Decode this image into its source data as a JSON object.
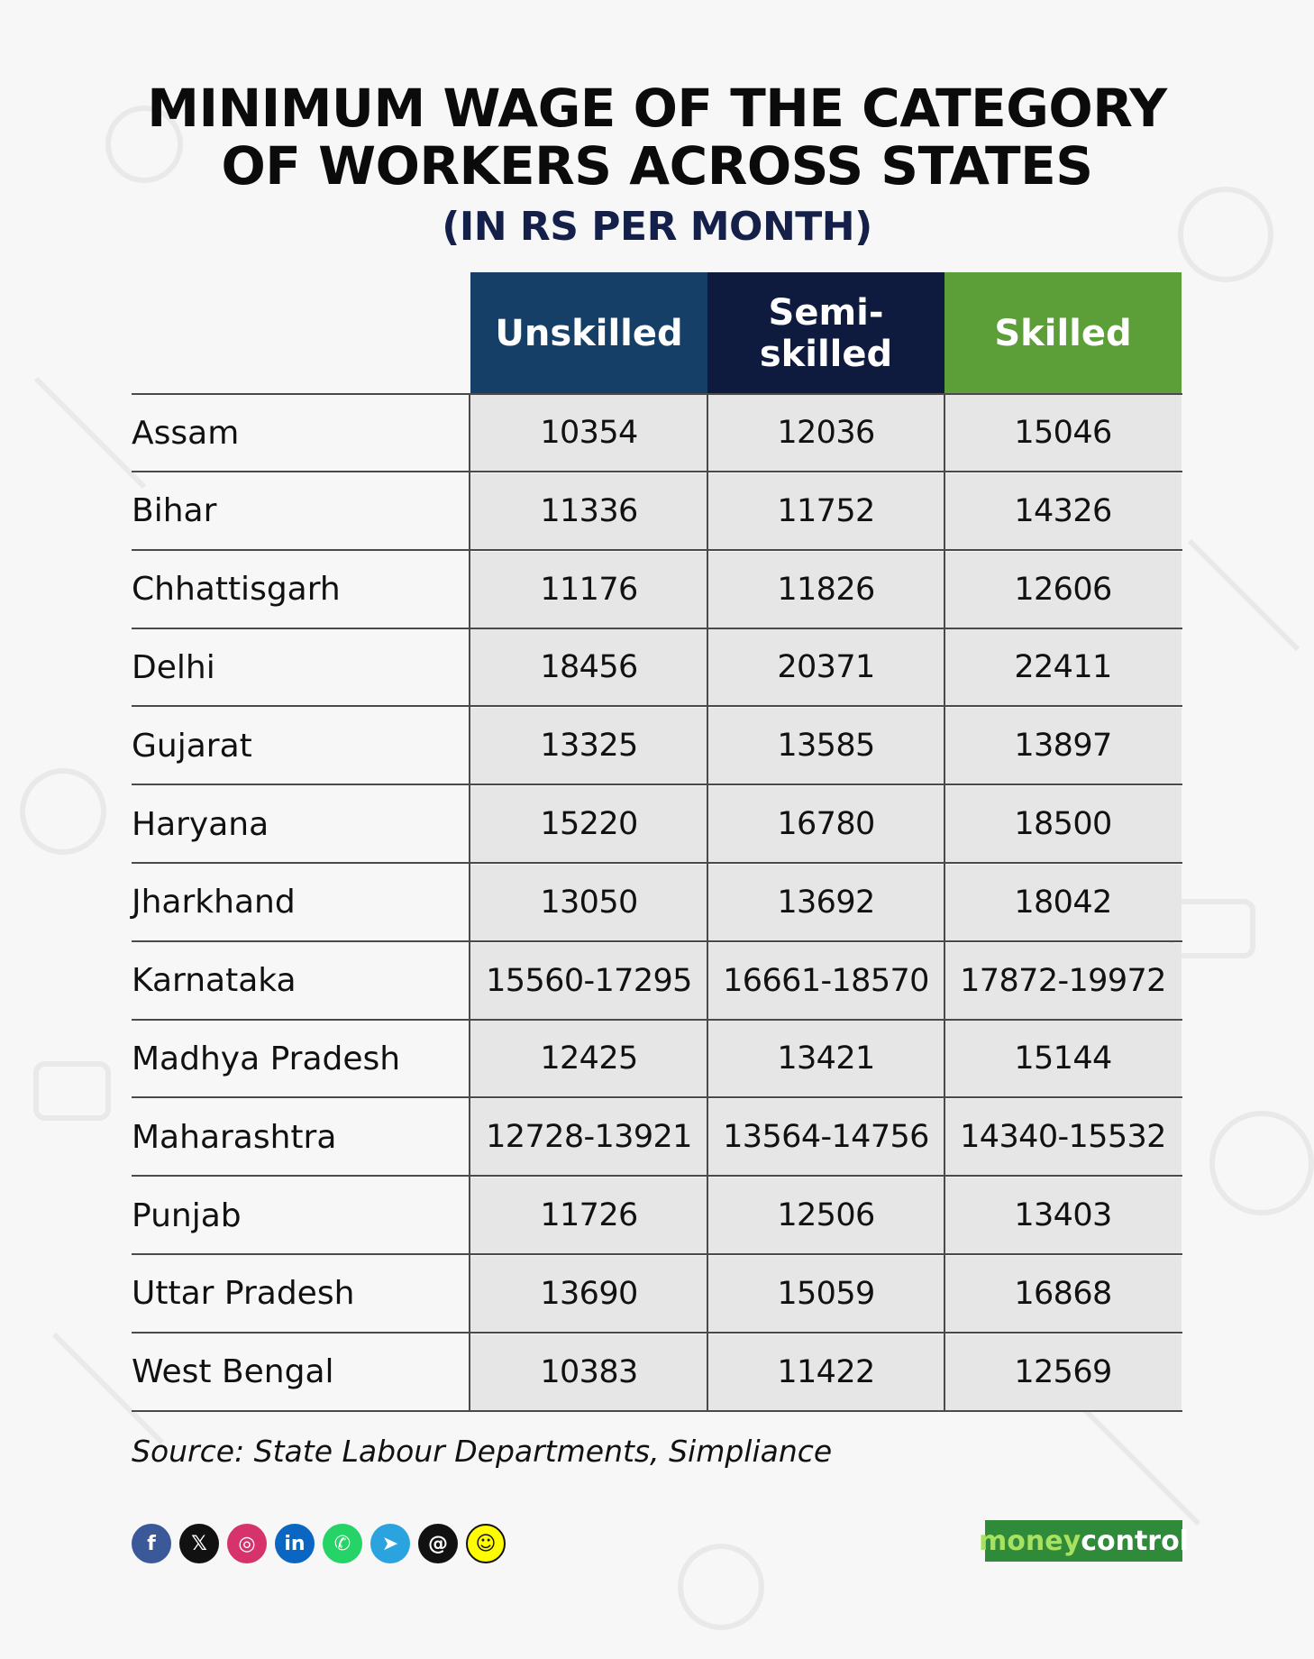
{
  "header": {
    "title_line1": "MINIMUM WAGE OF THE CATEGORY",
    "title_line2": "OF WORKERS ACROSS STATES",
    "subtitle": "(IN RS PER MONTH)"
  },
  "chart_data": {
    "type": "table",
    "title": "MINIMUM WAGE OF THE CATEGORY OF WORKERS ACROSS STATES",
    "subtitle": "(IN RS PER MONTH)",
    "columns": [
      "Unskilled",
      "Semi-skilled",
      "Skilled"
    ],
    "column_colors": [
      "#163f67",
      "#0e1b3e",
      "#5c9e38"
    ],
    "rows": [
      {
        "state": "Assam",
        "values": [
          "10354",
          "12036",
          "15046"
        ]
      },
      {
        "state": "Bihar",
        "values": [
          "11336",
          "11752",
          "14326"
        ]
      },
      {
        "state": "Chhattisgarh",
        "values": [
          "11176",
          "11826",
          "12606"
        ]
      },
      {
        "state": "Delhi",
        "values": [
          "18456",
          "20371",
          "22411"
        ]
      },
      {
        "state": "Gujarat",
        "values": [
          "13325",
          "13585",
          "13897"
        ]
      },
      {
        "state": "Haryana",
        "values": [
          "15220",
          "16780",
          "18500"
        ]
      },
      {
        "state": "Jharkhand",
        "values": [
          "13050",
          "13692",
          "18042"
        ]
      },
      {
        "state": "Karnataka",
        "values": [
          "15560-17295",
          "16661-18570",
          "17872-19972"
        ]
      },
      {
        "state": "Madhya Pradesh",
        "values": [
          "12425",
          "13421",
          "15144"
        ]
      },
      {
        "state": "Maharashtra",
        "values": [
          "12728-13921",
          "13564-14756",
          "14340-15532"
        ]
      },
      {
        "state": "Punjab",
        "values": [
          "11726",
          "12506",
          "13403"
        ]
      },
      {
        "state": "Uttar Pradesh",
        "values": [
          "13690",
          "15059",
          "16868"
        ]
      },
      {
        "state": "West Bengal",
        "values": [
          "10383",
          "11422",
          "12569"
        ]
      }
    ]
  },
  "footer": {
    "source": "Source: State Labour Departments, Simpliance",
    "social_icons": [
      {
        "name": "facebook-icon",
        "glyph": "f",
        "color": "#3b5998"
      },
      {
        "name": "x-icon",
        "glyph": "𝕏",
        "color": "#111111"
      },
      {
        "name": "instagram-icon",
        "glyph": "◎",
        "color": "#d6336c"
      },
      {
        "name": "linkedin-icon",
        "glyph": "in",
        "color": "#0a66c2"
      },
      {
        "name": "whatsapp-icon",
        "glyph": "✆",
        "color": "#25d366"
      },
      {
        "name": "telegram-icon",
        "glyph": "➤",
        "color": "#2aa3df"
      },
      {
        "name": "threads-icon",
        "glyph": "@",
        "color": "#111111"
      },
      {
        "name": "snapchat-icon",
        "glyph": "☺",
        "color": "#fffc00"
      }
    ],
    "logo_part1": "money",
    "logo_part2": "control"
  }
}
